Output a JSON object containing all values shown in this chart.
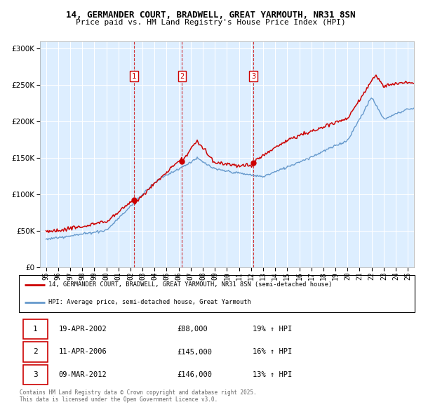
{
  "title_line1": "14, GERMANDER COURT, BRADWELL, GREAT YARMOUTH, NR31 8SN",
  "title_line2": "Price paid vs. HM Land Registry's House Price Index (HPI)",
  "legend_line1": "14, GERMANDER COURT, BRADWELL, GREAT YARMOUTH, NR31 8SN (semi-detached house)",
  "legend_line2": "HPI: Average price, semi-detached house, Great Yarmouth",
  "red_color": "#cc0000",
  "blue_color": "#6699cc",
  "bg_fill_color": "#ddeeff",
  "vline_color": "#cc0000",
  "transactions": [
    {
      "num": 1,
      "date": "19-APR-2002",
      "price": "£88,000",
      "pct": "19% ↑ HPI",
      "x": 2002.3
    },
    {
      "num": 2,
      "date": "11-APR-2006",
      "price": "£145,000",
      "pct": "16% ↑ HPI",
      "x": 2006.28
    },
    {
      "num": 3,
      "date": "09-MAR-2012",
      "price": "£146,000",
      "pct": "13% ↑ HPI",
      "x": 2012.19
    }
  ],
  "footer_line1": "Contains HM Land Registry data © Crown copyright and database right 2025.",
  "footer_line2": "This data is licensed under the Open Government Licence v3.0.",
  "xlim": [
    1994.5,
    2025.5
  ],
  "ylim": [
    0,
    310000
  ],
  "yticks": [
    0,
    50000,
    100000,
    150000,
    200000,
    250000,
    300000
  ],
  "xticks": [
    1995,
    1996,
    1997,
    1998,
    1999,
    2000,
    2001,
    2002,
    2003,
    2004,
    2005,
    2006,
    2007,
    2008,
    2009,
    2010,
    2011,
    2012,
    2013,
    2014,
    2015,
    2016,
    2017,
    2018,
    2019,
    2020,
    2021,
    2022,
    2023,
    2024,
    2025
  ],
  "xtick_labels": [
    "95",
    "96",
    "97",
    "98",
    "99",
    "00",
    "01",
    "02",
    "03",
    "04",
    "05",
    "06",
    "07",
    "08",
    "09",
    "10",
    "11",
    "12",
    "13",
    "14",
    "15",
    "16",
    "17",
    "18",
    "19",
    "20",
    "21",
    "22",
    "23",
    "24",
    "25"
  ]
}
